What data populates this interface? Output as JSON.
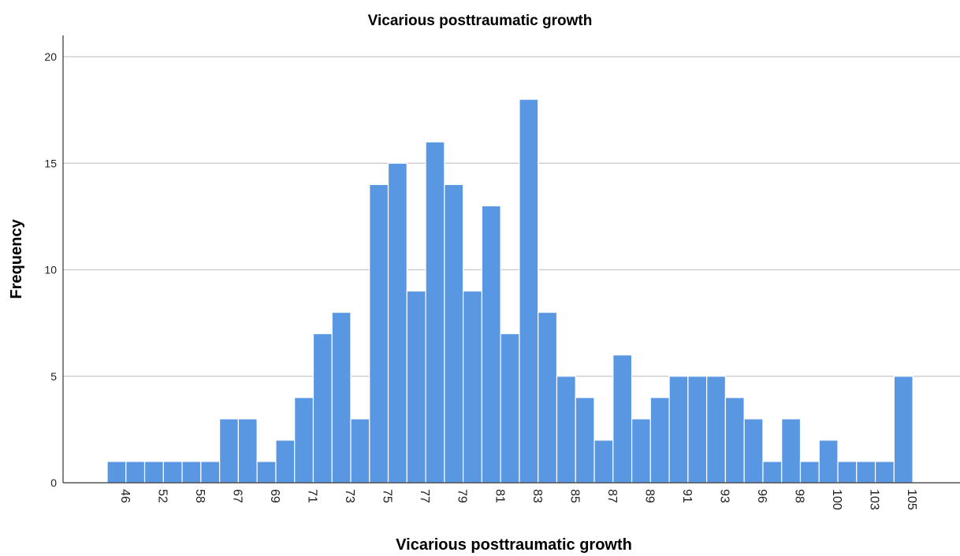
{
  "chart_data": {
    "type": "bar",
    "title": "Vicarious posttraumatic growth",
    "xlabel": "Vicarious posttraumatic growth",
    "ylabel": "Frequency",
    "ylim": [
      0,
      20
    ],
    "yticks": [
      0,
      5,
      10,
      15,
      20
    ],
    "grid": "horizontal",
    "colors": {
      "bar": "#5a97e3",
      "bar_stroke": "#ffffff",
      "grid": "#c8c8c8",
      "axis": "#333333"
    },
    "categories": [
      "46",
      "50",
      "52",
      "55",
      "58",
      "60",
      "67",
      "68",
      "69",
      "70",
      "71",
      "72",
      "73",
      "74",
      "75",
      "76",
      "77",
      "78",
      "79",
      "80",
      "81",
      "82",
      "83",
      "84",
      "85",
      "86",
      "87",
      "88",
      "89",
      "90",
      "91",
      "92",
      "93",
      "95",
      "96",
      "97",
      "98",
      "99",
      "100",
      "102",
      "103",
      "104",
      "105"
    ],
    "values": [
      1,
      1,
      1,
      1,
      1,
      1,
      3,
      3,
      1,
      2,
      4,
      7,
      8,
      3,
      14,
      15,
      9,
      16,
      14,
      9,
      13,
      7,
      18,
      8,
      5,
      4,
      2,
      6,
      3,
      4,
      5,
      5,
      5,
      4,
      3,
      1,
      3,
      1,
      2,
      1,
      1,
      1,
      5
    ],
    "shown_tick_labels": [
      "46",
      "52",
      "58",
      "67",
      "69",
      "71",
      "73",
      "75",
      "77",
      "79",
      "81",
      "83",
      "85",
      "87",
      "89",
      "91",
      "93",
      "96",
      "98",
      "100",
      "103",
      "105"
    ]
  }
}
